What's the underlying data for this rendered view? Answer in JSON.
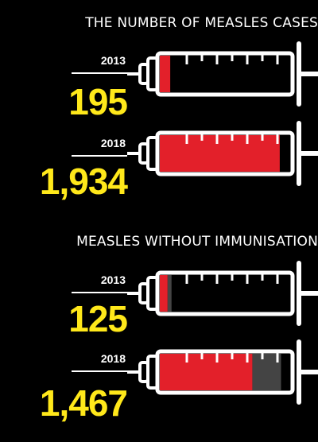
{
  "colors": {
    "background": "#000000",
    "outline": "#ffffff",
    "fill_primary": "#e3202a",
    "fill_secondary": "#444444",
    "value_text": "#ffe81a"
  },
  "sections": [
    {
      "title": "THE NUMBER OF MEASLES CASES",
      "rows": [
        {
          "year": "2013",
          "value_label": "195",
          "fill": [
            0.08
          ]
        },
        {
          "year": "2018",
          "value_label": "1,934",
          "fill": [
            0.92
          ]
        }
      ]
    },
    {
      "title": "MEASLES WITHOUT IMMUNISATION",
      "rows": [
        {
          "year": "2013",
          "value_label": "125",
          "fill": [
            0.06,
            0.03
          ]
        },
        {
          "year": "2018",
          "value_label": "1,467",
          "fill": [
            0.71,
            0.22
          ]
        }
      ]
    }
  ],
  "chart_data": [
    {
      "type": "bar",
      "title": "THE NUMBER OF MEASLES CASES",
      "categories": [
        "2013",
        "2018"
      ],
      "values": [
        195,
        1934
      ]
    },
    {
      "type": "bar",
      "title": "MEASLES WITHOUT IMMUNISATION",
      "categories": [
        "2013",
        "2018"
      ],
      "values": [
        125,
        1467
      ]
    }
  ]
}
